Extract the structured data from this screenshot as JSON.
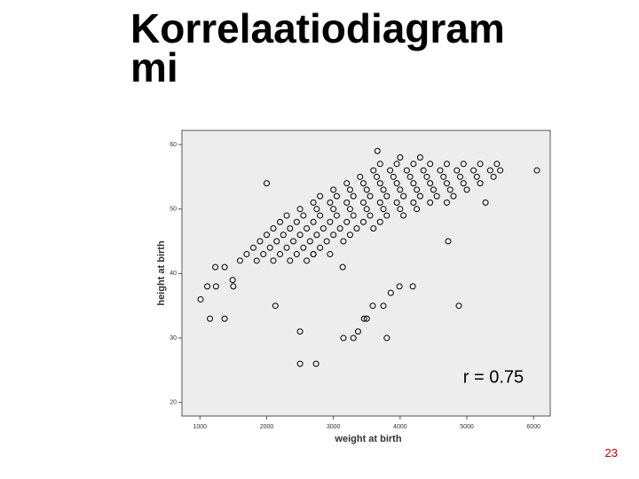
{
  "slide_title": "Korrelaatiodiagrammi",
  "page_number": "23",
  "chart_data": {
    "type": "scatter",
    "x_label": "weight at birth",
    "y_label": "height at birth",
    "annotation": "r = 0.75",
    "xlim": [
      730,
      6250
    ],
    "ylim": [
      17.9,
      62.2
    ],
    "xticks": [
      1000,
      2000,
      3000,
      4000,
      5000,
      6000
    ],
    "yticks": [
      20,
      30,
      40,
      50,
      60
    ],
    "color": "#000000",
    "background": "#ededed",
    "x": [
      1600,
      1850,
      2100,
      2350,
      1700,
      1950,
      2200,
      2450,
      2700,
      1800,
      2050,
      2300,
      2550,
      2800,
      1900,
      2150,
      2400,
      2650,
      2900,
      3150,
      2000,
      2250,
      2500,
      2750,
      3000,
      3250,
      2100,
      2350,
      2600,
      2850,
      3100,
      3350,
      3600,
      2200,
      2450,
      2700,
      2950,
      3200,
      3450,
      3700,
      2300,
      2550,
      2800,
      3050,
      3300,
      3550,
      3800,
      4050,
      2500,
      2750,
      3000,
      3250,
      3500,
      3750,
      4000,
      4250,
      2700,
      2950,
      3200,
      3450,
      3700,
      3950,
      4200,
      4450,
      4700,
      2800,
      3050,
      3300,
      3550,
      3800,
      4050,
      4300,
      4550,
      4800,
      3000,
      3250,
      3500,
      3750,
      4000,
      4250,
      4500,
      4750,
      5000,
      3200,
      3450,
      3700,
      3950,
      4200,
      4450,
      4700,
      4950,
      5200,
      3400,
      3650,
      3900,
      4150,
      4400,
      4650,
      4900,
      5150,
      5400,
      3600,
      3850,
      4100,
      4350,
      4600,
      4850,
      5100,
      5350,
      5500,
      3700,
      3950,
      4200,
      4450,
      4700,
      4950,
      5200,
      5450,
      4000,
      4300,
      1010,
      1150,
      1370,
      1110,
      1240,
      1230,
      1370,
      1500,
      1490,
      2130,
      2500,
      2500,
      2740,
      3150,
      3300,
      3370,
      3460,
      3500,
      3590,
      3750,
      3800,
      3990,
      4190,
      3860,
      4880,
      4720,
      5280,
      6050,
      2000,
      3660,
      3140,
      2600,
      2700,
      2950
    ],
    "values": [
      42,
      42,
      42,
      42,
      43,
      43,
      43,
      43,
      43,
      44,
      44,
      44,
      44,
      44,
      45,
      45,
      45,
      45,
      45,
      45,
      46,
      46,
      46,
      46,
      46,
      46,
      47,
      47,
      47,
      47,
      47,
      47,
      47,
      48,
      48,
      48,
      48,
      48,
      48,
      48,
      49,
      49,
      49,
      49,
      49,
      49,
      49,
      49,
      50,
      50,
      50,
      50,
      50,
      50,
      50,
      50,
      51,
      51,
      51,
      51,
      51,
      51,
      51,
      51,
      51,
      52,
      52,
      52,
      52,
      52,
      52,
      52,
      52,
      52,
      53,
      53,
      53,
      53,
      53,
      53,
      53,
      53,
      53,
      54,
      54,
      54,
      54,
      54,
      54,
      54,
      54,
      54,
      55,
      55,
      55,
      55,
      55,
      55,
      55,
      55,
      55,
      56,
      56,
      56,
      56,
      56,
      56,
      56,
      56,
      56,
      57,
      57,
      57,
      57,
      57,
      57,
      57,
      57,
      58,
      58,
      36,
      33,
      33,
      38,
      38,
      41,
      41,
      38,
      39,
      35,
      31,
      26,
      26,
      30,
      30,
      31,
      33,
      33,
      35,
      35,
      30,
      38,
      38,
      37,
      35,
      45,
      51,
      56,
      54,
      59,
      41,
      42,
      43,
      43
    ]
  }
}
